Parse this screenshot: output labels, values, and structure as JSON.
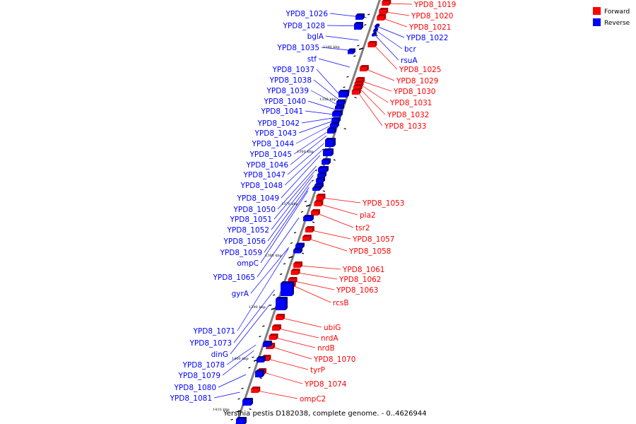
{
  "colors": {
    "forward": "#ff0000",
    "forward_shade": "#b00000",
    "reverse": "#0000ff",
    "reverse_shade": "#00008c",
    "backbone": "#808080"
  },
  "legend": [
    {
      "label": "Forward",
      "color": "#ff0000"
    },
    {
      "label": "Reverse",
      "color": "#0000ff"
    }
  ],
  "caption": "Yersinia pestis D182038, complete genome. - 0..4626944",
  "ticks": [
    "1340 kbp",
    "1350 kbp",
    "1360 kbp",
    "1370 kbp",
    "1380 kbp",
    "1390 kbp",
    "1400 kbp",
    "1410 kbp"
  ],
  "forward_genes": [
    "YPD8_1019",
    "YPD8_1020",
    "YPD8_1021",
    "YPD8_1025",
    "YPD8_1029",
    "YPD8_1030",
    "YPD8_1031",
    "YPD8_1032",
    "YPD8_1033",
    "YPD8_1053",
    "pla2",
    "tsr2",
    "YPD8_1057",
    "YPD8_1058",
    "YPD8_1061",
    "YPD8_1062",
    "YPD8_1063",
    "rcsB",
    "ubiG",
    "nrdA",
    "nrdB",
    "YPD8_1070",
    "tyrP",
    "YPD8_1074",
    "ompC2"
  ],
  "reverse_genes_right": [
    "YPD8_1022",
    "bcr",
    "rsuA"
  ],
  "reverse_genes_left": [
    "YPD8_1026",
    "YPD8_1028",
    "bglA",
    "YPD8_1035",
    "stf",
    "YPD8_1037",
    "YPD8_1038",
    "YPD8_1039",
    "YPD8_1040",
    "YPD8_1041",
    "YPD8_1042",
    "YPD8_1043",
    "YPD8_1044",
    "YPD8_1045",
    "YPD8_1046",
    "YPD8_1047",
    "YPD8_1048",
    "YPD8_1049",
    "YPD8_1050",
    "YPD8_1051",
    "YPD8_1052",
    "YPD8_1056",
    "YPD8_1059",
    "ompC",
    "YPD8_1065",
    "gyrA",
    "YPD8_1071",
    "YPD8_1073",
    "dinG",
    "YPD8_1078",
    "YPD8_1079",
    "YPD8_1080",
    "YPD8_1081"
  ]
}
